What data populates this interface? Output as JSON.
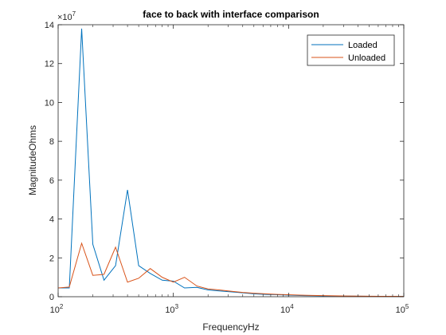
{
  "chart_data": {
    "type": "line",
    "title": "face to back with interface comparison",
    "xlabel": "FrequencyHz",
    "ylabel": "MagnitudeOhms",
    "xscale": "log",
    "xlim": [
      100,
      100000
    ],
    "ylim": [
      0,
      140000000
    ],
    "y_exponent_label": "×10",
    "y_exponent_power": "7",
    "yticks": [
      0,
      20000000,
      40000000,
      60000000,
      80000000,
      100000000,
      120000000,
      140000000
    ],
    "ytick_labels": [
      "0",
      "2",
      "4",
      "6",
      "8",
      "10",
      "12",
      "14"
    ],
    "xticks": [
      100,
      1000,
      10000,
      100000
    ],
    "xtick_bases": [
      "10",
      "10",
      "10",
      "10"
    ],
    "xtick_powers": [
      "2",
      "3",
      "4",
      "5"
    ],
    "grid": false,
    "legend_position": "top-right",
    "series": [
      {
        "name": "Loaded",
        "color": "#0072BD",
        "x": [
          100,
          125,
          160,
          200,
          250,
          315,
          400,
          500,
          630,
          800,
          1000,
          1250,
          1600,
          2000,
          2500,
          3150,
          4000,
          5000,
          6300,
          8000,
          10000,
          12500,
          16000,
          20000,
          25000,
          31500,
          40000,
          50000,
          63000,
          80000,
          100000
        ],
        "y": [
          4500000,
          4500000,
          138000000,
          27000000,
          8500000,
          16000000,
          55000000,
          16000000,
          12000000,
          8500000,
          8000000,
          4500000,
          4800000,
          3500000,
          3000000,
          2500000,
          2000000,
          1500000,
          1200000,
          1000000,
          800000,
          600000,
          500000,
          400000,
          350000,
          300000,
          250000,
          200000,
          180000,
          150000,
          120000
        ]
      },
      {
        "name": "Unloaded",
        "color": "#D95319",
        "x": [
          100,
          125,
          160,
          200,
          250,
          315,
          400,
          500,
          630,
          800,
          1000,
          1250,
          1600,
          2000,
          2500,
          3150,
          4000,
          5000,
          6300,
          8000,
          10000,
          12500,
          16000,
          20000,
          25000,
          31500,
          40000,
          50000,
          63000,
          80000,
          100000
        ],
        "y": [
          4500000,
          5000000,
          27500000,
          11000000,
          11500000,
          25500000,
          7500000,
          9500000,
          14500000,
          10000000,
          7500000,
          10000000,
          5500000,
          4000000,
          3500000,
          2800000,
          2200000,
          1800000,
          1500000,
          1200000,
          1000000,
          800000,
          650000,
          550000,
          450000,
          380000,
          320000,
          270000,
          230000,
          200000,
          170000
        ]
      }
    ]
  }
}
